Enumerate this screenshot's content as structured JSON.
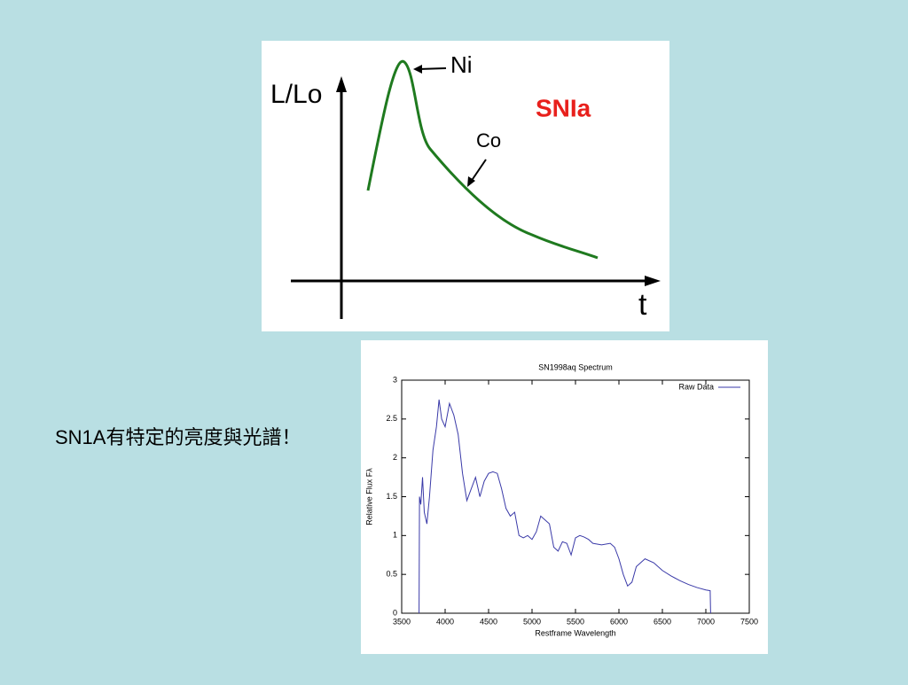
{
  "slide_text": "SN1A有特定的亮度與光譜！",
  "diagram": {
    "y_label": "L/Lo",
    "x_label": "t",
    "tag": "SNIa",
    "arrow_labels": [
      "Ni",
      "Co"
    ]
  },
  "chart_data": {
    "type": "line",
    "title": "SN1998aq Spectrum",
    "x_label": "Restframe Wavelength",
    "y_label": "Relative Flux Fλ",
    "xlim": [
      3500,
      7500
    ],
    "xticks": [
      3500,
      4000,
      4500,
      5000,
      5500,
      6000,
      6500,
      7000,
      7500
    ],
    "ylim": [
      0,
      3
    ],
    "yticks": [
      0,
      0.5,
      1,
      1.5,
      2,
      2.5,
      3
    ],
    "legend": "top-right",
    "x": [
      3700,
      3705,
      3720,
      3740,
      3760,
      3790,
      3820,
      3860,
      3900,
      3930,
      3960,
      4000,
      4050,
      4100,
      4150,
      4200,
      4250,
      4300,
      4350,
      4400,
      4450,
      4500,
      4550,
      4600,
      4650,
      4700,
      4750,
      4800,
      4850,
      4900,
      4950,
      5000,
      5050,
      5100,
      5150,
      5200,
      5250,
      5300,
      5350,
      5400,
      5450,
      5500,
      5550,
      5600,
      5650,
      5700,
      5800,
      5900,
      5950,
      6000,
      6050,
      6100,
      6150,
      6200,
      6300,
      6400,
      6500,
      6600,
      6700,
      6800,
      6900,
      7000,
      7050,
      7055
    ],
    "series": [
      {
        "name": "Raw Data",
        "color": "#3a3aa8",
        "values": [
          0,
          1.5,
          1.4,
          1.75,
          1.3,
          1.15,
          1.5,
          2.1,
          2.4,
          2.75,
          2.5,
          2.4,
          2.7,
          2.55,
          2.3,
          1.8,
          1.45,
          1.6,
          1.75,
          1.5,
          1.7,
          1.8,
          1.82,
          1.8,
          1.6,
          1.35,
          1.25,
          1.3,
          1.0,
          0.97,
          1.0,
          0.95,
          1.05,
          1.25,
          1.2,
          1.15,
          0.85,
          0.8,
          0.92,
          0.9,
          0.75,
          0.97,
          1.0,
          0.98,
          0.95,
          0.9,
          0.88,
          0.9,
          0.85,
          0.7,
          0.5,
          0.35,
          0.4,
          0.6,
          0.7,
          0.65,
          0.55,
          0.48,
          0.42,
          0.37,
          0.33,
          0.3,
          0.29,
          0
        ]
      }
    ]
  }
}
